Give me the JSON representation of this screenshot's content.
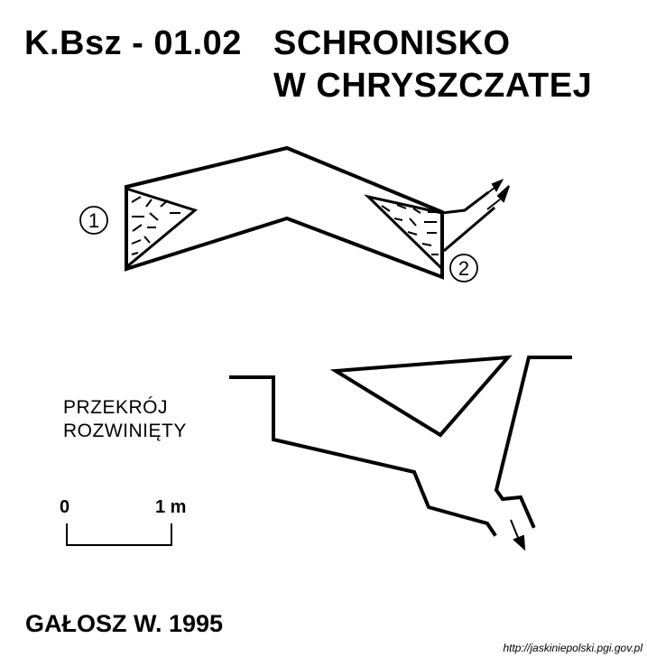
{
  "title": {
    "code": "K.Bsz - 01.02",
    "name_line1": "SCHRONISKO",
    "name_line2": "W CHRYSZCZATEJ"
  },
  "entrances": [
    "1",
    "2"
  ],
  "section_label": {
    "line1": "PRZEKRÓJ",
    "line2": "ROZWINIĘTY"
  },
  "scale": {
    "start": "0",
    "end": "1 m"
  },
  "author": "GAŁOSZ W. 1995",
  "source_url": "http://jaskiniepolski.pgi.gov.pl",
  "colors": {
    "ink": "#000000",
    "paper": "#ffffff"
  }
}
